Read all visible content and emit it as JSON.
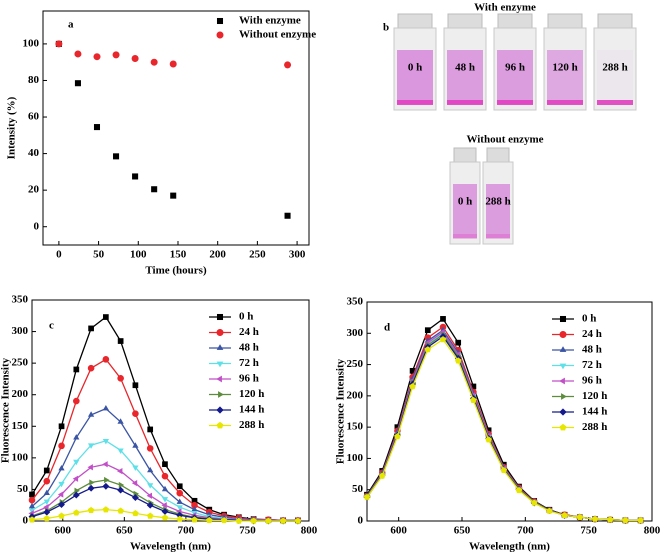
{
  "chart_data": [
    {
      "type": "scatter",
      "panel_label": "a",
      "xlabel": "Time (hours)",
      "ylabel": "Intensity (%)",
      "xlim": [
        -20,
        315
      ],
      "ylim": [
        -10,
        118
      ],
      "xticks": [
        0,
        50,
        100,
        150,
        200,
        250,
        300
      ],
      "yticks": [
        0,
        20,
        40,
        60,
        80,
        100
      ],
      "legend": "upper right",
      "series": [
        {
          "name": "With enzyme",
          "color": "#000000",
          "marker": "square",
          "x": [
            0,
            24,
            48,
            72,
            96,
            120,
            144,
            288
          ],
          "values": [
            100,
            78.5,
            54.5,
            38.5,
            27.5,
            20.5,
            17,
            6
          ]
        },
        {
          "name": "Without enzyme",
          "color": "#e8262b",
          "marker": "circle",
          "x": [
            0,
            24,
            48,
            72,
            96,
            120,
            144,
            288
          ],
          "values": [
            100,
            94.5,
            93,
            94,
            92,
            90,
            89,
            88.5
          ]
        }
      ]
    },
    {
      "type": "line",
      "panel_label": "c",
      "xlabel": "Wavelength (nm)",
      "ylabel": "Fluorescence Intensity",
      "xlim": [
        575,
        800
      ],
      "ylim": [
        0,
        350
      ],
      "xticks": [
        600,
        650,
        700,
        750,
        800
      ],
      "yticks": [
        0,
        50,
        100,
        150,
        200,
        250,
        300,
        350
      ],
      "legend": "upper right",
      "x": [
        575,
        587,
        599,
        611,
        623,
        635,
        647,
        659,
        671,
        683,
        695,
        707,
        719,
        731,
        743,
        755,
        767,
        779,
        791
      ],
      "series": [
        {
          "name": "0 h",
          "color": "#000000",
          "marker": "square",
          "values": [
            42,
            80,
            150,
            240,
            305,
            323,
            285,
            215,
            145,
            90,
            55,
            32,
            18,
            10,
            6,
            3,
            2,
            1,
            1
          ]
        },
        {
          "name": "24 h",
          "color": "#e8262b",
          "marker": "circle",
          "values": [
            33,
            63,
            119,
            190,
            242,
            256,
            226,
            170,
            115,
            71,
            44,
            25,
            14,
            8,
            5,
            2,
            2,
            1,
            1
          ]
        },
        {
          "name": "48 h",
          "color": "#3a55a4",
          "marker": "triangle-up",
          "values": [
            23,
            44,
            83,
            132,
            168,
            178,
            157,
            119,
            80,
            50,
            30,
            18,
            10,
            6,
            3,
            2,
            1,
            1,
            1
          ]
        },
        {
          "name": "72 h",
          "color": "#5ee0e8",
          "marker": "triangle-down",
          "values": [
            17,
            31,
            59,
            94,
            120,
            127,
            112,
            85,
            57,
            35,
            22,
            13,
            7,
            4,
            2,
            1,
            1,
            0,
            0
          ]
        },
        {
          "name": "96 h",
          "color": "#c24fc8",
          "marker": "triangle-left",
          "values": [
            12,
            22,
            42,
            67,
            85,
            90,
            79,
            60,
            40,
            25,
            15,
            9,
            5,
            3,
            2,
            1,
            1,
            0,
            0
          ]
        },
        {
          "name": "120 h",
          "color": "#5d8c3c",
          "marker": "triangle-right",
          "values": [
            8,
            16,
            30,
            48,
            61,
            65,
            57,
            43,
            29,
            18,
            11,
            6,
            4,
            2,
            1,
            1,
            0,
            0,
            0
          ]
        },
        {
          "name": "144 h",
          "color": "#141a8c",
          "marker": "diamond",
          "values": [
            7,
            14,
            26,
            41,
            52,
            55,
            49,
            37,
            25,
            15,
            9,
            5,
            3,
            2,
            1,
            0,
            0,
            0,
            0
          ]
        },
        {
          "name": "288 h",
          "color": "#e6e600",
          "marker": "pentagon",
          "values": [
            2,
            4,
            8,
            13,
            17,
            18,
            16,
            12,
            8,
            5,
            3,
            2,
            1,
            1,
            0,
            0,
            0,
            0,
            0
          ]
        }
      ]
    },
    {
      "type": "line",
      "panel_label": "d",
      "xlabel": "Wavelength (nm)",
      "ylabel": "Fluorescence Intensity",
      "xlim": [
        575,
        800
      ],
      "ylim": [
        0,
        350
      ],
      "xticks": [
        600,
        650,
        700,
        750,
        800
      ],
      "yticks": [
        0,
        50,
        100,
        150,
        200,
        250,
        300,
        350
      ],
      "legend": "upper right",
      "x": [
        575,
        587,
        599,
        611,
        623,
        635,
        647,
        659,
        671,
        683,
        695,
        707,
        719,
        731,
        743,
        755,
        767,
        779,
        791
      ],
      "series": [
        {
          "name": "0 h",
          "color": "#000000",
          "marker": "square",
          "values": [
            42,
            80,
            150,
            240,
            305,
            323,
            285,
            215,
            145,
            90,
            55,
            32,
            18,
            10,
            6,
            3,
            2,
            1,
            1
          ]
        },
        {
          "name": "24 h",
          "color": "#e8262b",
          "marker": "circle",
          "values": [
            40,
            77,
            144,
            230,
            293,
            310,
            273,
            206,
            139,
            86,
            53,
            31,
            17,
            10,
            6,
            3,
            2,
            1,
            1
          ]
        },
        {
          "name": "48 h",
          "color": "#3a55a4",
          "marker": "triangle-up",
          "values": [
            40,
            76,
            142,
            227,
            288,
            305,
            269,
            203,
            137,
            85,
            52,
            30,
            17,
            9,
            6,
            3,
            2,
            1,
            1
          ]
        },
        {
          "name": "72 h",
          "color": "#5ee0e8",
          "marker": "triangle-down",
          "values": [
            39,
            74,
            139,
            223,
            283,
            300,
            265,
            200,
            135,
            84,
            51,
            30,
            17,
            9,
            6,
            3,
            2,
            1,
            1
          ]
        },
        {
          "name": "96 h",
          "color": "#c24fc8",
          "marker": "triangle-left",
          "values": [
            39,
            75,
            140,
            224,
            285,
            302,
            266,
            201,
            136,
            84,
            51,
            30,
            17,
            9,
            6,
            3,
            2,
            1,
            1
          ]
        },
        {
          "name": "120 h",
          "color": "#5d8c3c",
          "marker": "triangle-right",
          "values": [
            39,
            74,
            138,
            221,
            281,
            298,
            263,
            198,
            134,
            83,
            51,
            30,
            17,
            9,
            6,
            3,
            2,
            1,
            1
          ]
        },
        {
          "name": "144 h",
          "color": "#141a8c",
          "marker": "diamond",
          "values": [
            38,
            73,
            137,
            219,
            278,
            295,
            260,
            196,
            132,
            82,
            50,
            29,
            17,
            9,
            6,
            3,
            2,
            1,
            1
          ]
        },
        {
          "name": "288 h",
          "color": "#e6e600",
          "marker": "pentagon",
          "values": [
            38,
            72,
            135,
            215,
            274,
            290,
            256,
            193,
            130,
            81,
            49,
            29,
            16,
            9,
            6,
            3,
            2,
            1,
            1
          ]
        }
      ]
    }
  ],
  "photo": {
    "panel_label": "b",
    "groups": [
      {
        "title": "With enzyme",
        "vials": [
          "0 h",
          "48 h",
          "96 h",
          "120 h",
          "288 h"
        ]
      },
      {
        "title": "Without enzyme",
        "vials": [
          "0 h",
          "288 h"
        ]
      }
    ]
  }
}
